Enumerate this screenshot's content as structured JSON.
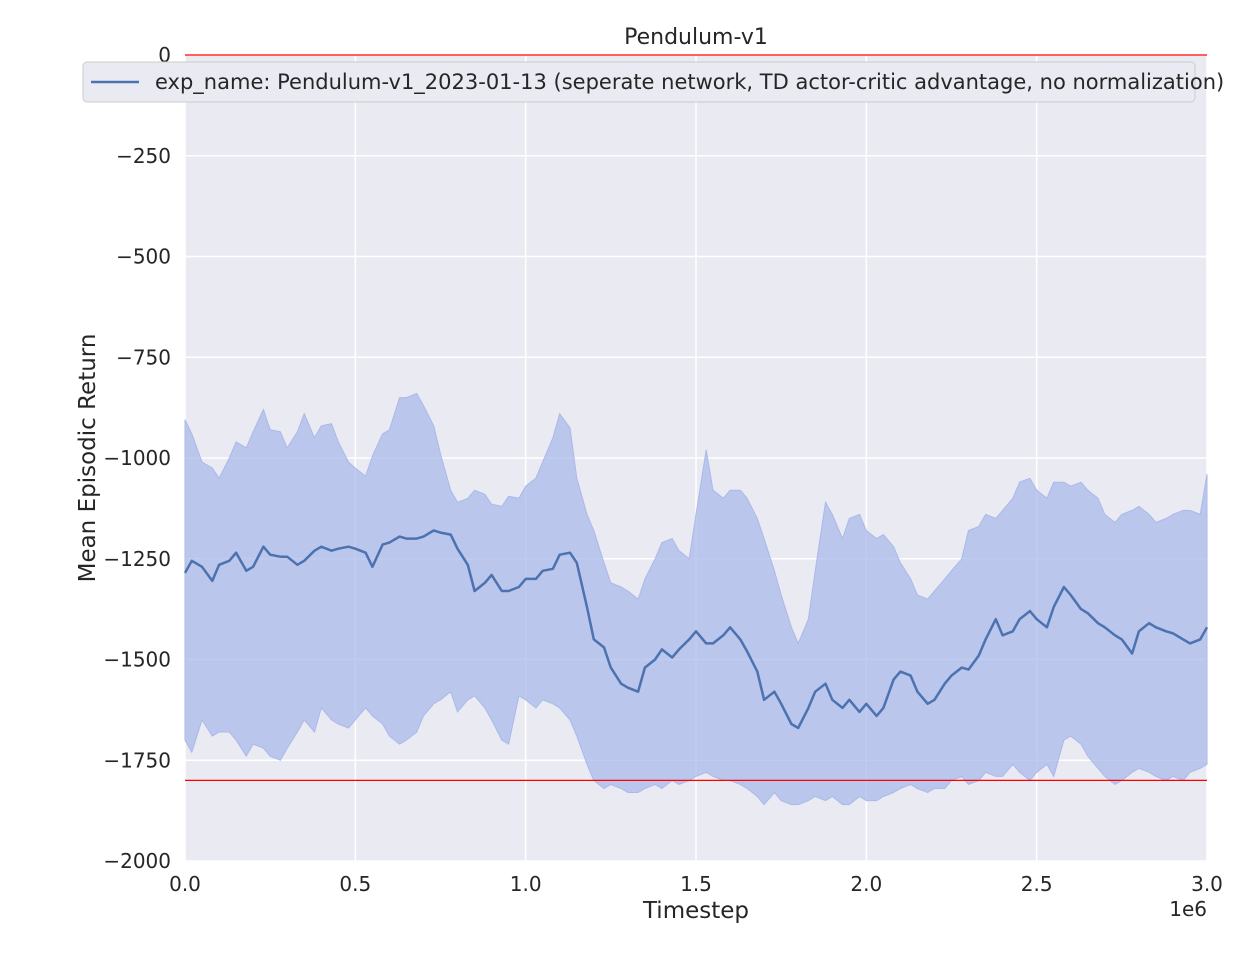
{
  "chart_data": {
    "type": "line",
    "title": "Pendulum-v1",
    "xlabel": "Timestep",
    "ylabel": "Mean Episodic Return",
    "x_offset_label": "1e6",
    "xlim": [
      0,
      3.0
    ],
    "ylim": [
      -2000,
      0
    ],
    "x_ticks": [
      0.0,
      0.5,
      1.0,
      1.5,
      2.0,
      2.5,
      3.0
    ],
    "x_tick_labels": [
      "0.0",
      "0.5",
      "1.0",
      "1.5",
      "2.0",
      "2.5",
      "3.0"
    ],
    "y_ticks": [
      0,
      -250,
      -500,
      -750,
      -1000,
      -1250,
      -1500,
      -1750,
      -2000
    ],
    "y_tick_labels": [
      "0",
      "−250",
      "−500",
      "−750",
      "−1000",
      "−1250",
      "−1500",
      "−1750",
      "−2000"
    ],
    "grid": true,
    "legend_position": "top",
    "reference_lines": [
      {
        "y": 0,
        "color": "#ff0000"
      },
      {
        "y": -1800,
        "color": "#ff0000"
      }
    ],
    "series": [
      {
        "name": "exp_name: Pendulum-v1_2023-01-13 (seperate network, TD actor-critic advantage, no normalization)",
        "color": "#4c72b0",
        "band_color": "#aab9ea",
        "x": [
          0.0,
          0.02,
          0.05,
          0.08,
          0.1,
          0.13,
          0.15,
          0.18,
          0.2,
          0.23,
          0.25,
          0.28,
          0.3,
          0.33,
          0.35,
          0.38,
          0.4,
          0.43,
          0.45,
          0.48,
          0.5,
          0.53,
          0.55,
          0.58,
          0.6,
          0.63,
          0.65,
          0.68,
          0.7,
          0.73,
          0.75,
          0.78,
          0.8,
          0.83,
          0.85,
          0.88,
          0.9,
          0.93,
          0.95,
          0.98,
          1.0,
          1.03,
          1.05,
          1.08,
          1.1,
          1.13,
          1.15,
          1.18,
          1.2,
          1.23,
          1.25,
          1.28,
          1.3,
          1.33,
          1.35,
          1.38,
          1.4,
          1.43,
          1.45,
          1.48,
          1.5,
          1.53,
          1.55,
          1.58,
          1.6,
          1.63,
          1.65,
          1.68,
          1.7,
          1.73,
          1.75,
          1.78,
          1.8,
          1.83,
          1.85,
          1.88,
          1.9,
          1.93,
          1.95,
          1.98,
          2.0,
          2.03,
          2.05,
          2.08,
          2.1,
          2.13,
          2.15,
          2.18,
          2.2,
          2.23,
          2.25,
          2.28,
          2.3,
          2.33,
          2.35,
          2.38,
          2.4,
          2.43,
          2.45,
          2.48,
          2.5,
          2.53,
          2.55,
          2.58,
          2.6,
          2.63,
          2.65,
          2.68,
          2.7,
          2.73,
          2.75,
          2.78,
          2.8,
          2.83,
          2.85,
          2.88,
          2.9,
          2.93,
          2.95,
          2.98,
          3.0
        ],
        "mean": [
          -1285,
          -1255,
          -1270,
          -1305,
          -1265,
          -1255,
          -1235,
          -1280,
          -1270,
          -1220,
          -1240,
          -1245,
          -1245,
          -1265,
          -1255,
          -1230,
          -1220,
          -1230,
          -1225,
          -1220,
          -1225,
          -1235,
          -1270,
          -1215,
          -1210,
          -1195,
          -1200,
          -1200,
          -1195,
          -1180,
          -1185,
          -1190,
          -1225,
          -1265,
          -1330,
          -1310,
          -1290,
          -1330,
          -1330,
          -1320,
          -1300,
          -1300,
          -1280,
          -1275,
          -1240,
          -1235,
          -1260,
          -1370,
          -1450,
          -1470,
          -1520,
          -1560,
          -1570,
          -1580,
          -1520,
          -1500,
          -1475,
          -1495,
          -1475,
          -1450,
          -1430,
          -1460,
          -1460,
          -1440,
          -1420,
          -1450,
          -1480,
          -1530,
          -1600,
          -1580,
          -1610,
          -1660,
          -1670,
          -1620,
          -1580,
          -1560,
          -1600,
          -1620,
          -1600,
          -1630,
          -1610,
          -1640,
          -1620,
          -1550,
          -1530,
          -1540,
          -1580,
          -1610,
          -1600,
          -1560,
          -1540,
          -1520,
          -1525,
          -1490,
          -1450,
          -1400,
          -1440,
          -1430,
          -1400,
          -1380,
          -1400,
          -1420,
          -1370,
          -1320,
          -1340,
          -1375,
          -1385,
          -1410,
          -1420,
          -1440,
          -1450,
          -1485,
          -1430,
          -1410,
          -1420,
          -1430,
          -1435,
          -1450,
          -1460,
          -1450,
          -1420
        ],
        "upper": [
          -905,
          -940,
          -1010,
          -1025,
          -1050,
          -1000,
          -960,
          -975,
          -935,
          -880,
          -930,
          -935,
          -975,
          -935,
          -890,
          -950,
          -920,
          -915,
          -960,
          -1010,
          -1025,
          -1045,
          -995,
          -940,
          -930,
          -850,
          -850,
          -840,
          -870,
          -920,
          -990,
          -1080,
          -1110,
          -1100,
          -1080,
          -1090,
          -1115,
          -1120,
          -1095,
          -1100,
          -1070,
          -1050,
          -1010,
          -950,
          -890,
          -925,
          -1050,
          -1140,
          -1180,
          -1260,
          -1310,
          -1320,
          -1330,
          -1350,
          -1300,
          -1250,
          -1210,
          -1200,
          -1230,
          -1250,
          -1140,
          -980,
          -1080,
          -1100,
          -1080,
          -1080,
          -1100,
          -1150,
          -1200,
          -1280,
          -1340,
          -1420,
          -1460,
          -1400,
          -1280,
          -1110,
          -1140,
          -1200,
          -1150,
          -1140,
          -1180,
          -1200,
          -1190,
          -1220,
          -1260,
          -1300,
          -1340,
          -1350,
          -1330,
          -1300,
          -1280,
          -1250,
          -1180,
          -1170,
          -1140,
          -1150,
          -1130,
          -1100,
          -1060,
          -1050,
          -1080,
          -1100,
          -1060,
          -1060,
          -1070,
          -1060,
          -1080,
          -1100,
          -1140,
          -1160,
          -1140,
          -1130,
          -1120,
          -1140,
          -1160,
          -1150,
          -1140,
          -1130,
          -1130,
          -1140,
          -1040
        ],
        "lower": [
          -1700,
          -1730,
          -1650,
          -1690,
          -1680,
          -1680,
          -1700,
          -1740,
          -1710,
          -1720,
          -1740,
          -1750,
          -1720,
          -1680,
          -1650,
          -1680,
          -1620,
          -1650,
          -1660,
          -1670,
          -1650,
          -1620,
          -1640,
          -1660,
          -1690,
          -1710,
          -1700,
          -1680,
          -1640,
          -1610,
          -1600,
          -1580,
          -1630,
          -1600,
          -1590,
          -1620,
          -1650,
          -1700,
          -1710,
          -1590,
          -1600,
          -1620,
          -1600,
          -1610,
          -1620,
          -1650,
          -1690,
          -1760,
          -1800,
          -1820,
          -1810,
          -1820,
          -1830,
          -1830,
          -1820,
          -1810,
          -1820,
          -1800,
          -1810,
          -1800,
          -1790,
          -1780,
          -1790,
          -1800,
          -1800,
          -1810,
          -1820,
          -1840,
          -1860,
          -1830,
          -1850,
          -1860,
          -1860,
          -1850,
          -1840,
          -1850,
          -1840,
          -1860,
          -1860,
          -1840,
          -1850,
          -1850,
          -1840,
          -1830,
          -1820,
          -1810,
          -1820,
          -1830,
          -1820,
          -1820,
          -1800,
          -1790,
          -1810,
          -1800,
          -1780,
          -1790,
          -1790,
          -1760,
          -1780,
          -1800,
          -1780,
          -1760,
          -1790,
          -1700,
          -1690,
          -1710,
          -1740,
          -1770,
          -1790,
          -1810,
          -1800,
          -1780,
          -1770,
          -1780,
          -1790,
          -1800,
          -1790,
          -1800,
          -1780,
          -1770,
          -1760
        ]
      }
    ]
  }
}
